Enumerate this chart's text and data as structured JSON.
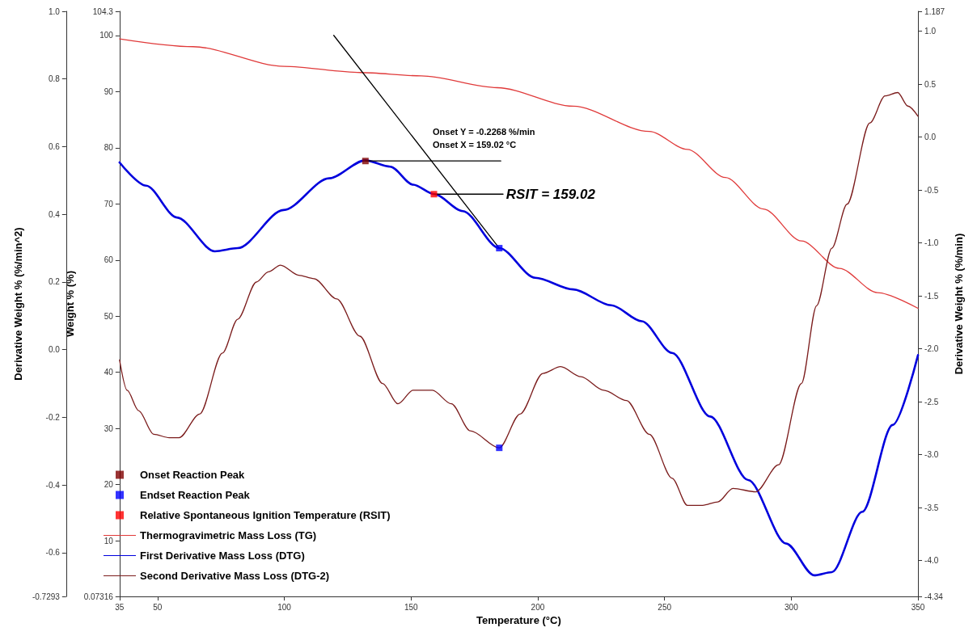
{
  "chart_data": {
    "type": "line",
    "xlabel": "Temperature (°C)",
    "ylabel": "Weight % (%)",
    "y2label": "Derivative Weight % (%/min)",
    "y3label": "Derivative Weight % (%/min^2)",
    "xlim": [
      35,
      350
    ],
    "xticks": [
      35,
      50,
      100,
      150,
      200,
      250,
      300,
      350
    ],
    "ylim": [
      0.07316,
      104.3
    ],
    "yticks": [
      0.07316,
      10,
      20,
      30,
      40,
      50,
      60,
      70,
      80,
      90,
      100,
      104.3
    ],
    "y2lim": [
      -4.34,
      1.187
    ],
    "y2ticks": [
      -4.34,
      {
        "value": -4,
        "label": "-4.0"
      },
      -3.5,
      {
        "value": -3,
        "label": "-3.0"
      },
      -2.5,
      {
        "value": -2,
        "label": "-2.0"
      },
      -1.5,
      {
        "value": -1,
        "label": "-1.0"
      },
      -0.5,
      {
        "value": 0,
        "label": "0.0"
      },
      0.5,
      {
        "value": 1,
        "label": "1.0"
      },
      1.187
    ],
    "y3lim": [
      -0.7293,
      1.0
    ],
    "y3ticks": [
      -0.7293,
      -0.6,
      -0.4,
      -0.2,
      {
        "value": 0,
        "label": "0.0"
      },
      0.2,
      0.4,
      0.6,
      0.8,
      {
        "value": 1,
        "label": "1.0"
      }
    ],
    "legend": "bottom left",
    "series": [
      {
        "name": "Onset Reaction Peak",
        "type": "scatter",
        "marker": "square",
        "axis": "y2",
        "color": "#800000",
        "x": [
          132
        ],
        "values": [
          -0.2268
        ]
      },
      {
        "name": "Endset Reaction Peak",
        "type": "scatter",
        "marker": "square",
        "axis": "y2",
        "color": "#0000ff",
        "x": [
          184.8
        ],
        "values": [
          -1.05
        ]
      },
      {
        "name": "Relative Spontaneous Ignition Temperature (RSIT)",
        "type": "scatter",
        "marker": "square",
        "axis": "y2",
        "color": "#ff0000",
        "x": [
          159.02
        ],
        "values": [
          -0.54
        ]
      },
      {
        "name": "Thermogravimetric Mass Loss (TG)",
        "color": "#e03a3a",
        "x": [
          35,
          64,
          100,
          130,
          154,
          184,
          214,
          244,
          259,
          274,
          289,
          304,
          319,
          334,
          350
        ],
        "values": [
          99.4,
          98.0,
          94.5,
          93.4,
          92.8,
          90.7,
          87.4,
          82.9,
          79.7,
          74.7,
          69.1,
          63.4,
          58.5,
          54.2,
          51.4
        ]
      },
      {
        "name": "First Derivative Mass Loss (DTG)",
        "axis": "y2",
        "color": "#0000dd",
        "x": [
          35,
          45.5,
          57.6,
          72.6,
          81.6,
          99.7,
          117.7,
          131.9,
          141.8,
          150.8,
          159.2,
          170.4,
          184.8,
          199,
          214,
          229,
          241,
          253,
          268,
          283,
          298,
          309,
          316,
          328,
          340,
          350
        ],
        "values": [
          -0.24,
          -0.46,
          -0.76,
          -1.08,
          -1.05,
          -0.69,
          -0.39,
          -0.22,
          -0.28,
          -0.45,
          -0.54,
          -0.7,
          -1.05,
          -1.33,
          -1.44,
          -1.59,
          -1.74,
          -2.04,
          -2.64,
          -3.24,
          -3.84,
          -4.14,
          -4.11,
          -3.54,
          -2.72,
          -2.06
        ]
      },
      {
        "name": "Second Derivative Mass Loss (DTG-2)",
        "axis": "y3",
        "color": "#7b1c1c",
        "x": [
          35,
          38,
          42.5,
          48.5,
          54.6,
          58.5,
          66.6,
          75.6,
          81.6,
          89,
          93.7,
          98.5,
          105.7,
          111.7,
          120.7,
          129.8,
          138.8,
          144.8,
          150.8,
          158.4,
          165.9,
          173.4,
          184.8,
          193,
          202,
          209,
          217,
          226,
          235,
          244,
          253,
          259,
          265,
          271,
          277,
          286,
          295,
          304,
          310,
          316,
          322,
          331,
          337,
          342,
          346,
          350
        ],
        "values": [
          -0.03,
          -0.12,
          -0.18,
          -0.25,
          -0.26,
          -0.26,
          -0.19,
          -0.01,
          0.09,
          0.2,
          0.23,
          0.25,
          0.22,
          0.21,
          0.15,
          0.04,
          -0.1,
          -0.16,
          -0.12,
          -0.12,
          -0.16,
          -0.24,
          -0.29,
          -0.19,
          -0.07,
          -0.05,
          -0.08,
          -0.12,
          -0.15,
          -0.25,
          -0.38,
          -0.46,
          -0.46,
          -0.45,
          -0.41,
          -0.42,
          -0.34,
          -0.1,
          0.13,
          0.3,
          0.43,
          0.67,
          0.75,
          0.76,
          0.72,
          0.69
        ]
      },
      {
        "type": "scatter",
        "marker": "square",
        "axis": "y3",
        "color": "#0000ff",
        "x": [
          184.8
        ],
        "values": [
          -0.29
        ]
      },
      {
        "axis": "y2",
        "color": "#000000",
        "x": [
          119.5,
          184.8
        ],
        "values": [
          0.96,
          -1.05
        ]
      },
      {
        "axis": "y2",
        "color": "#000000",
        "x": [
          132,
          185.4
        ],
        "values": [
          -0.2268,
          -0.2268
        ]
      },
      {
        "axis": "y2",
        "color": "#000000",
        "x": [
          159.02,
          186.3
        ],
        "values": [
          -0.54,
          -0.54
        ]
      }
    ],
    "annotations": [
      "Onset Y = -0.2268 %/min\nOnset X = 159.02 °C",
      {
        "text": "RSIT = 159.02",
        "x": 187.5,
        "y": 71.7
      }
    ]
  }
}
